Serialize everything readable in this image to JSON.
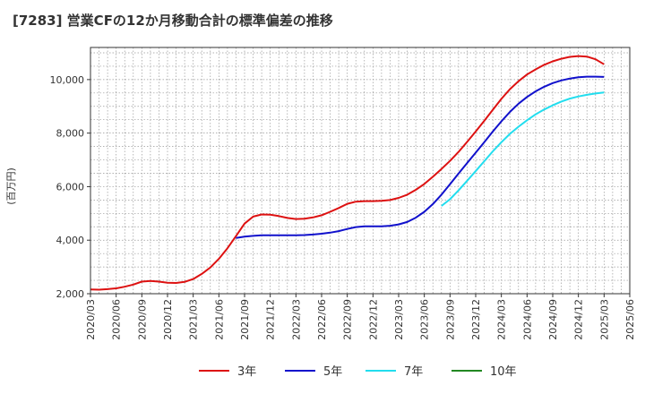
{
  "chart_data": {
    "type": "line",
    "title": "[7283]  営業CFの12か月移動合計の標準偏差の推移",
    "ylabel": "(百万円)",
    "xlabel": "",
    "ylim": [
      2000,
      11200
    ],
    "yticks": [
      2000,
      4000,
      6000,
      8000,
      10000
    ],
    "ytick_labels": [
      "2,000",
      "4,000",
      "6,000",
      "8,000",
      "10,000"
    ],
    "xticks": [
      "2020/03",
      "2020/06",
      "2020/09",
      "2020/12",
      "2021/03",
      "2021/06",
      "2021/09",
      "2021/12",
      "2022/03",
      "2022/06",
      "2022/09",
      "2022/12",
      "2023/03",
      "2023/06",
      "2023/09",
      "2023/12",
      "2024/03",
      "2024/06",
      "2024/09",
      "2024/12",
      "2025/03",
      "2025/06"
    ],
    "grid": true,
    "legend_position": "bottom",
    "series": [
      {
        "name": "3年",
        "color": "#dd1111",
        "x": [
          "2020/03",
          "2020/04",
          "2020/05",
          "2020/06",
          "2020/07",
          "2020/08",
          "2020/09",
          "2020/10",
          "2020/11",
          "2020/12",
          "2021/01",
          "2021/02",
          "2021/03",
          "2021/04",
          "2021/05",
          "2021/06",
          "2021/07",
          "2021/08",
          "2021/09",
          "2021/10",
          "2021/11",
          "2021/12",
          "2022/01",
          "2022/02",
          "2022/03",
          "2022/04",
          "2022/05",
          "2022/06",
          "2022/07",
          "2022/08",
          "2022/09",
          "2022/10",
          "2022/11",
          "2022/12",
          "2023/01",
          "2023/02",
          "2023/03",
          "2023/04",
          "2023/05",
          "2023/06",
          "2023/07",
          "2023/08",
          "2023/09",
          "2023/10",
          "2023/11",
          "2023/12",
          "2024/01",
          "2024/02",
          "2024/03",
          "2024/04",
          "2024/05",
          "2024/06",
          "2024/07",
          "2024/08",
          "2024/09",
          "2024/10",
          "2024/11",
          "2024/12",
          "2025/01",
          "2025/02",
          "2025/03"
        ],
        "values": [
          2160,
          2150,
          2170,
          2200,
          2260,
          2340,
          2450,
          2480,
          2450,
          2410,
          2400,
          2440,
          2550,
          2740,
          2980,
          3300,
          3700,
          4150,
          4620,
          4880,
          4960,
          4950,
          4900,
          4830,
          4790,
          4800,
          4850,
          4930,
          5060,
          5200,
          5360,
          5440,
          5460,
          5460,
          5470,
          5500,
          5580,
          5700,
          5880,
          6100,
          6370,
          6660,
          6960,
          7300,
          7670,
          8060,
          8460,
          8870,
          9280,
          9640,
          9940,
          10190,
          10380,
          10550,
          10680,
          10780,
          10850,
          10880,
          10860,
          10760,
          10570
        ]
      },
      {
        "name": "5年",
        "color": "#1111cc",
        "x": [
          "2021/08",
          "2021/09",
          "2021/10",
          "2021/11",
          "2021/12",
          "2022/01",
          "2022/02",
          "2022/03",
          "2022/04",
          "2022/05",
          "2022/06",
          "2022/07",
          "2022/08",
          "2022/09",
          "2022/10",
          "2022/11",
          "2022/12",
          "2023/01",
          "2023/02",
          "2023/03",
          "2023/04",
          "2023/05",
          "2023/06",
          "2023/07",
          "2023/08",
          "2023/09",
          "2023/10",
          "2023/11",
          "2023/12",
          "2024/01",
          "2024/02",
          "2024/03",
          "2024/04",
          "2024/05",
          "2024/06",
          "2024/07",
          "2024/08",
          "2024/09",
          "2024/10",
          "2024/11",
          "2024/12",
          "2025/01",
          "2025/02",
          "2025/03"
        ],
        "values": [
          4080,
          4130,
          4160,
          4180,
          4180,
          4180,
          4180,
          4180,
          4190,
          4210,
          4240,
          4280,
          4340,
          4420,
          4490,
          4520,
          4520,
          4520,
          4540,
          4590,
          4680,
          4840,
          5060,
          5350,
          5700,
          6090,
          6490,
          6880,
          7270,
          7660,
          8060,
          8440,
          8790,
          9100,
          9350,
          9560,
          9730,
          9870,
          9970,
          10040,
          10090,
          10110,
          10110,
          10100
        ]
      },
      {
        "name": "7年",
        "color": "#22ddee",
        "x": [
          "2023/08",
          "2023/09",
          "2023/10",
          "2023/11",
          "2023/12",
          "2024/01",
          "2024/02",
          "2024/03",
          "2024/04",
          "2024/05",
          "2024/06",
          "2024/07",
          "2024/08",
          "2024/09",
          "2024/10",
          "2024/11",
          "2024/12",
          "2025/01",
          "2025/02",
          "2025/03"
        ],
        "values": [
          5280,
          5530,
          5860,
          6220,
          6580,
          6950,
          7320,
          7660,
          7970,
          8240,
          8480,
          8700,
          8880,
          9040,
          9180,
          9290,
          9370,
          9430,
          9480,
          9520
        ]
      },
      {
        "name": "10年",
        "color": "#228822",
        "x": [],
        "values": []
      }
    ]
  }
}
